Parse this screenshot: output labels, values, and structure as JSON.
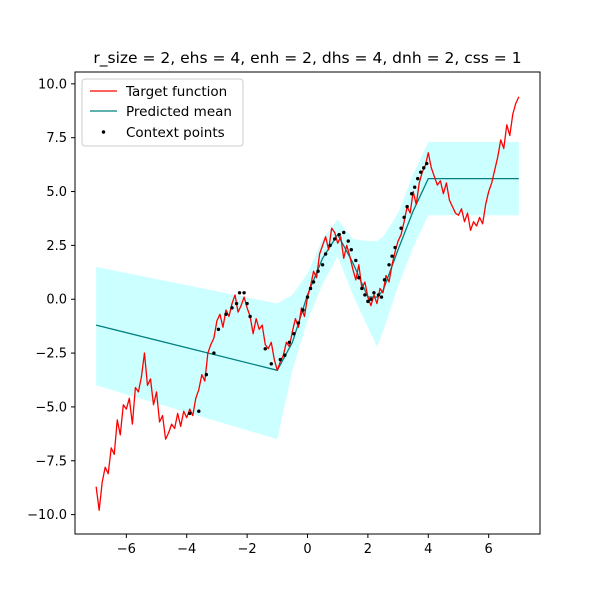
{
  "chart_data": {
    "type": "line",
    "title": "r_size = 2, ehs = 4, enh = 2, dhs = 4, dnh = 2, css = 1",
    "xlabel": "",
    "ylabel": "",
    "xlim": [
      -7.7,
      7.7
    ],
    "ylim": [
      -10.9,
      10.55
    ],
    "xticks": [
      -6,
      -4,
      -2,
      0,
      2,
      4,
      6
    ],
    "yticks": [
      -10.0,
      -7.5,
      -5.0,
      -2.5,
      0.0,
      2.5,
      5.0,
      7.5,
      10.0
    ],
    "ytick_labels": [
      "−10.0",
      "−7.5",
      "−5.0",
      "−2.5",
      "0.0",
      "2.5",
      "5.0",
      "7.5",
      "10.0"
    ],
    "xtick_labels": [
      "−6",
      "−4",
      "−2",
      "0",
      "2",
      "4",
      "6"
    ],
    "grid": false,
    "legend_position": "upper-left",
    "series": [
      {
        "name": "Target function",
        "kind": "line",
        "color": "#ff0000",
        "x": [
          -7.0,
          -6.9,
          -6.8,
          -6.7,
          -6.6,
          -6.5,
          -6.4,
          -6.3,
          -6.2,
          -6.1,
          -6.0,
          -5.9,
          -5.8,
          -5.7,
          -5.6,
          -5.5,
          -5.4,
          -5.3,
          -5.2,
          -5.1,
          -5.0,
          -4.9,
          -4.8,
          -4.7,
          -4.6,
          -4.5,
          -4.4,
          -4.3,
          -4.2,
          -4.1,
          -4.0,
          -3.9,
          -3.8,
          -3.7,
          -3.6,
          -3.5,
          -3.4,
          -3.3,
          -3.2,
          -3.1,
          -3.0,
          -2.9,
          -2.8,
          -2.7,
          -2.6,
          -2.5,
          -2.4,
          -2.3,
          -2.2,
          -2.1,
          -2.0,
          -1.9,
          -1.8,
          -1.7,
          -1.6,
          -1.5,
          -1.4,
          -1.3,
          -1.2,
          -1.1,
          -1.0,
          -0.9,
          -0.8,
          -0.7,
          -0.6,
          -0.5,
          -0.4,
          -0.3,
          -0.2,
          -0.1,
          0.0,
          0.1,
          0.2,
          0.3,
          0.4,
          0.5,
          0.6,
          0.7,
          0.8,
          0.9,
          1.0,
          1.1,
          1.2,
          1.3,
          1.4,
          1.5,
          1.6,
          1.7,
          1.8,
          1.9,
          2.0,
          2.1,
          2.2,
          2.3,
          2.4,
          2.5,
          2.6,
          2.7,
          2.8,
          2.9,
          3.0,
          3.1,
          3.2,
          3.3,
          3.4,
          3.5,
          3.6,
          3.7,
          3.8,
          3.9,
          4.0,
          4.1,
          4.2,
          4.3,
          4.4,
          4.5,
          4.6,
          4.7,
          4.8,
          4.9,
          5.0,
          5.1,
          5.2,
          5.3,
          5.4,
          5.5,
          5.6,
          5.7,
          5.8,
          5.9,
          6.0,
          6.1,
          6.2,
          6.3,
          6.4,
          6.5,
          6.6,
          6.7,
          6.8,
          6.9,
          7.0
        ],
        "y": [
          -8.7,
          -9.8,
          -8.5,
          -7.8,
          -8.1,
          -6.9,
          -7.2,
          -5.6,
          -6.3,
          -4.9,
          -5.1,
          -4.6,
          -5.8,
          -4.1,
          -4.3,
          -3.6,
          -2.5,
          -4.0,
          -3.7,
          -4.9,
          -4.3,
          -5.7,
          -5.4,
          -6.5,
          -6.2,
          -5.8,
          -6.0,
          -5.3,
          -5.9,
          -5.2,
          -5.5,
          -5.1,
          -5.4,
          -4.6,
          -4.2,
          -3.5,
          -3.8,
          -2.5,
          -2.1,
          -1.8,
          -1.0,
          -0.7,
          -1.3,
          -0.5,
          -0.8,
          -0.2,
          0.2,
          -0.6,
          -0.3,
          0.1,
          -0.4,
          -0.8,
          -1.6,
          -0.9,
          -1.4,
          -1.2,
          -2.1,
          -2.3,
          -2.0,
          -2.8,
          -3.3,
          -2.9,
          -2.6,
          -2.0,
          -2.2,
          -1.5,
          -0.9,
          -1.3,
          -0.4,
          -0.8,
          0.1,
          0.6,
          1.3,
          1.0,
          2.1,
          2.5,
          2.9,
          2.3,
          3.3,
          3.1,
          2.6,
          2.9,
          1.9,
          2.5,
          2.0,
          1.4,
          0.9,
          1.6,
          0.5,
          0.8,
          0.1,
          -0.3,
          0.2,
          -0.2,
          0.5,
          0.3,
          1.1,
          0.8,
          1.6,
          2.2,
          2.7,
          3.0,
          3.6,
          4.3,
          4.0,
          5.0,
          4.4,
          5.4,
          5.9,
          6.2,
          6.8,
          6.1,
          5.7,
          5.3,
          5.5,
          4.9,
          5.4,
          4.6,
          4.3,
          4.0,
          3.9,
          4.2,
          3.6,
          4.0,
          3.2,
          3.6,
          3.4,
          3.8,
          3.5,
          4.4,
          5.0,
          5.4,
          6.0,
          6.6,
          7.4,
          7.0,
          8.1,
          7.6,
          8.6,
          9.1,
          9.4
        ]
      },
      {
        "name": "Predicted mean",
        "kind": "line",
        "color": "#008080",
        "x": [
          -7.0,
          -1.0,
          -0.5,
          0.0,
          0.5,
          1.0,
          1.5,
          2.0,
          2.3,
          2.5,
          3.0,
          3.5,
          4.0,
          7.0
        ],
        "y": [
          -1.2,
          -3.3,
          -2.0,
          0.2,
          1.9,
          3.0,
          1.7,
          0.1,
          0.1,
          0.4,
          2.3,
          4.1,
          5.6,
          5.6
        ]
      },
      {
        "name": "",
        "kind": "band",
        "color": "#00ffff",
        "opacity": 0.2,
        "x": [
          -7.0,
          -1.0,
          -0.5,
          0.0,
          0.5,
          1.0,
          1.5,
          2.0,
          2.3,
          2.5,
          3.0,
          3.5,
          4.0,
          7.0
        ],
        "lower": [
          -4.0,
          -6.5,
          -3.3,
          -1.0,
          0.7,
          2.0,
          0.2,
          -1.3,
          -2.2,
          -1.5,
          0.6,
          2.4,
          3.9,
          3.9
        ],
        "upper": [
          1.5,
          -0.2,
          0.2,
          1.2,
          2.8,
          3.7,
          2.8,
          2.7,
          2.7,
          2.9,
          4.0,
          5.8,
          7.3,
          7.3
        ]
      },
      {
        "name": "Context points",
        "kind": "scatter",
        "color": "#000000",
        "x": [
          -3.9,
          -3.6,
          -3.35,
          -3.1,
          -2.95,
          -2.7,
          -2.5,
          -2.35,
          -2.25,
          -2.1,
          -2.0,
          -1.9,
          -1.4,
          -1.2,
          -0.9,
          -0.75,
          -0.6,
          -0.45,
          -0.3,
          -0.15,
          0.0,
          0.1,
          0.2,
          0.35,
          0.5,
          0.6,
          0.75,
          0.9,
          1.05,
          1.2,
          1.35,
          1.45,
          1.6,
          1.7,
          1.8,
          1.9,
          2.0,
          2.1,
          2.2,
          2.35,
          2.45,
          2.55,
          2.7,
          2.8,
          2.9,
          3.1,
          3.2,
          3.3,
          3.45,
          3.55,
          3.65,
          3.75,
          3.85,
          3.95
        ],
        "y": [
          -5.3,
          -5.2,
          -3.5,
          -2.5,
          -1.4,
          -0.7,
          -0.4,
          -0.2,
          0.3,
          0.3,
          -0.2,
          -0.8,
          -2.3,
          -3.0,
          -2.8,
          -2.6,
          -2.0,
          -1.6,
          -1.1,
          -0.5,
          0.1,
          0.5,
          0.8,
          1.3,
          1.6,
          2.1,
          2.5,
          2.8,
          3.0,
          3.1,
          2.7,
          2.3,
          1.8,
          1.0,
          0.5,
          0.2,
          -0.1,
          0.0,
          0.3,
          0.2,
          0.1,
          0.9,
          1.6,
          2.0,
          2.4,
          3.3,
          3.8,
          4.3,
          4.9,
          5.2,
          5.6,
          5.9,
          6.1,
          6.3
        ]
      }
    ]
  }
}
